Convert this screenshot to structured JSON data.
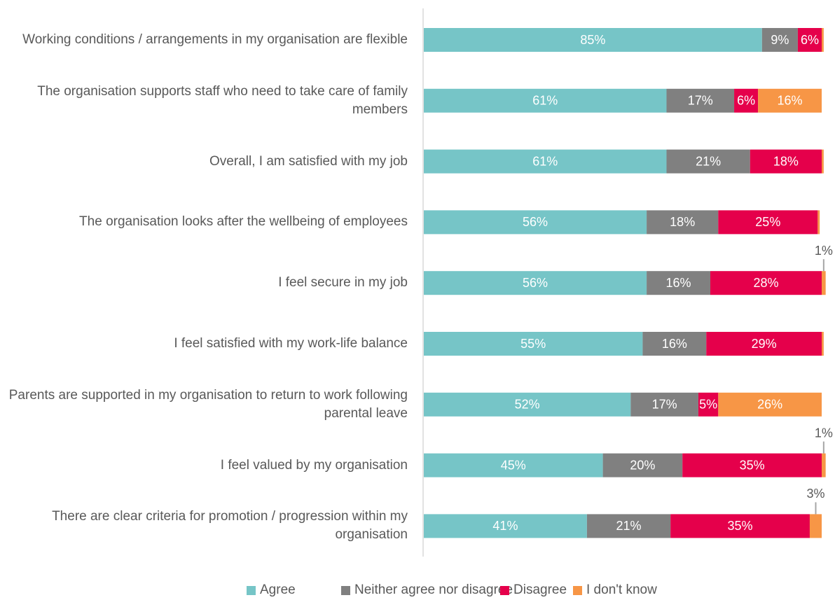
{
  "chart_data": {
    "type": "stacked-barh",
    "categories": [
      "Working conditions / arrangements in my organisation are flexible",
      "The organisation supports staff who need to take care of family members",
      "Overall, I am satisfied with my job",
      "The organisation looks after the wellbeing of employees",
      "I feel secure in my job",
      "I feel satisfied with my work-life balance",
      "Parents are supported in my organisation to return to work following parental leave",
      "I feel valued by my organisation",
      "There are clear criteria for promotion / progression within my organisation"
    ],
    "xlim": [
      0,
      100
    ],
    "series": [
      {
        "name": "Agree",
        "color": "#76c5c7",
        "values": [
          85,
          61,
          61,
          56,
          56,
          55,
          52,
          45,
          41
        ],
        "value_labels": [
          "85%",
          "61%",
          "61%",
          "56%",
          "56%",
          "55%",
          "52%",
          "45%",
          "41%"
        ]
      },
      {
        "name": "Neither agree nor disagree",
        "color": "#808080",
        "values": [
          9,
          17,
          21,
          18,
          16,
          16,
          17,
          20,
          21
        ],
        "value_labels": [
          "9%",
          "17%",
          "21%",
          "18%",
          "16%",
          "16%",
          "17%",
          "20%",
          "21%"
        ]
      },
      {
        "name": "Disagree",
        "color": "#e5004b",
        "values": [
          6,
          6,
          18,
          25,
          28,
          29,
          5,
          35,
          35
        ],
        "value_labels": [
          "6%",
          "6%",
          "18%",
          "25%",
          "28%",
          "29%",
          "5%",
          "35%",
          "35%"
        ]
      },
      {
        "name": "I don't know",
        "color": "#f79646",
        "values": [
          0.5,
          16,
          0.5,
          0.5,
          1,
          0.5,
          26,
          1,
          3
        ],
        "value_labels": [
          null,
          "16%",
          null,
          null,
          "1%",
          null,
          "26%",
          "1%",
          "3%"
        ]
      }
    ]
  }
}
